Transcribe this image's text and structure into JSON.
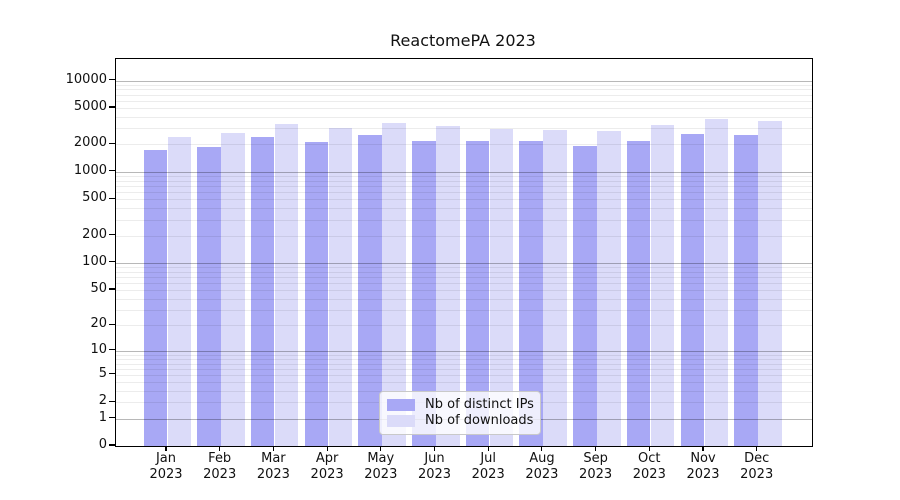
{
  "chart_data": {
    "type": "bar",
    "title": "ReactomePA 2023",
    "categories": [
      "Jan 2023",
      "Feb 2023",
      "Mar 2023",
      "Apr 2023",
      "May 2023",
      "Jun 2023",
      "Jul 2023",
      "Aug 2023",
      "Sep 2023",
      "Oct 2023",
      "Nov 2023",
      "Dec 2023"
    ],
    "x_months": [
      "Jan",
      "Feb",
      "Mar",
      "Apr",
      "May",
      "Jun",
      "Jul",
      "Aug",
      "Sep",
      "Oct",
      "Nov",
      "Dec"
    ],
    "x_year": "2023",
    "series": [
      {
        "name": "Nb of distinct IPs",
        "color": "#a8a8f5",
        "values": [
          1750,
          1860,
          2430,
          2120,
          2510,
          2200,
          2160,
          2200,
          1940,
          2160,
          2620,
          2560
        ]
      },
      {
        "name": "Nb of downloads",
        "color": "#dbdbf9",
        "values": [
          2390,
          2690,
          3340,
          3000,
          3420,
          3170,
          2940,
          2850,
          2780,
          3290,
          3830,
          3600
        ]
      }
    ],
    "xlabel": "",
    "ylabel": "",
    "y_scale": "log1p",
    "ylim": [
      0,
      17200
    ],
    "y_ticks": [
      0,
      1,
      2,
      5,
      10,
      20,
      50,
      100,
      200,
      500,
      1000,
      2000,
      5000,
      10000
    ],
    "grid": "on",
    "legend_position": "lower center",
    "colors": {
      "distinct_ips": "#a8a8f5",
      "downloads": "#dbdbf9",
      "major_grid": "#b3b3b3",
      "minor_grid": "#ededed",
      "spine": "#000000"
    }
  }
}
